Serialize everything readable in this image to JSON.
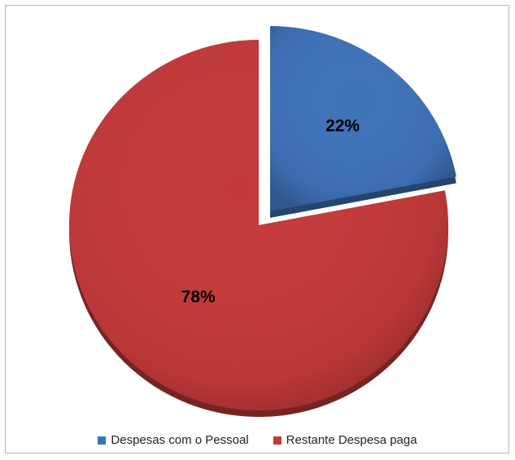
{
  "chart_data": {
    "type": "pie",
    "title": "",
    "slices": [
      {
        "name": "Despesas com o Pessoal",
        "value": 22,
        "label": "22%",
        "color": "#3e72b8",
        "exploded": true
      },
      {
        "name": "Restante Despesa paga",
        "value": 78,
        "label": "78%",
        "color": "#c43a3a",
        "exploded": false
      }
    ],
    "legend_position": "bottom"
  }
}
